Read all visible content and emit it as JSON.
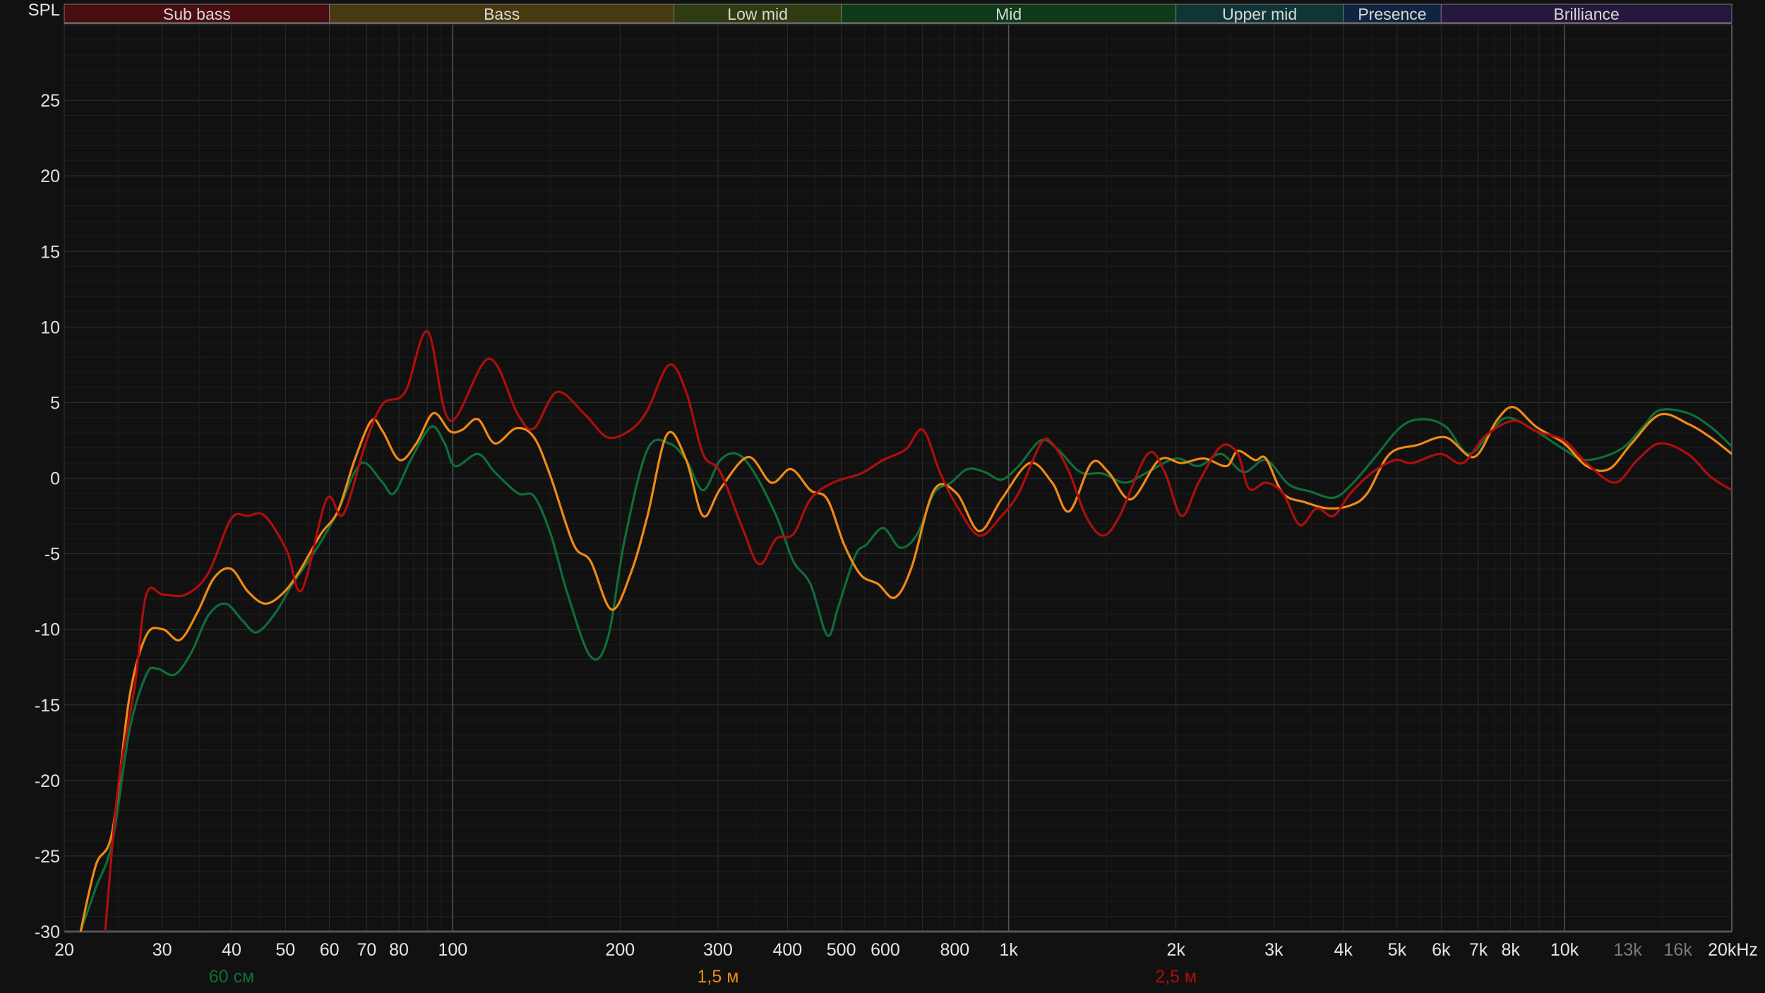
{
  "chart_data": {
    "type": "line",
    "ylabel": "SPL",
    "xunit": "kHz",
    "xscale": "log",
    "xlim": [
      20,
      20000
    ],
    "ylim": [
      -30,
      30
    ],
    "grid": true,
    "y_ticks": [
      -30,
      -25,
      -20,
      -15,
      -10,
      -5,
      0,
      5,
      10,
      15,
      20,
      25
    ],
    "x_ticks": [
      {
        "f": 20,
        "label": "20"
      },
      {
        "f": 30,
        "label": "30"
      },
      {
        "f": 40,
        "label": "40"
      },
      {
        "f": 50,
        "label": "50"
      },
      {
        "f": 60,
        "label": "60"
      },
      {
        "f": 70,
        "label": "70"
      },
      {
        "f": 80,
        "label": "80"
      },
      {
        "f": 100,
        "label": "100"
      },
      {
        "f": 200,
        "label": "200"
      },
      {
        "f": 300,
        "label": "300"
      },
      {
        "f": 400,
        "label": "400"
      },
      {
        "f": 500,
        "label": "500"
      },
      {
        "f": 600,
        "label": "600"
      },
      {
        "f": 800,
        "label": "800"
      },
      {
        "f": 1000,
        "label": "1k"
      },
      {
        "f": 2000,
        "label": "2k"
      },
      {
        "f": 3000,
        "label": "3k"
      },
      {
        "f": 4000,
        "label": "4k"
      },
      {
        "f": 5000,
        "label": "5k"
      },
      {
        "f": 6000,
        "label": "6k"
      },
      {
        "f": 7000,
        "label": "7k"
      },
      {
        "f": 8000,
        "label": "8k"
      },
      {
        "f": 10000,
        "label": "10k"
      },
      {
        "f": 13000,
        "label": "13k",
        "dim": true
      },
      {
        "f": 16000,
        "label": "16k",
        "dim": true
      },
      {
        "f": 20000,
        "label": "20kHz"
      }
    ],
    "bands": [
      {
        "label": "Sub bass",
        "from": 20,
        "to": 60,
        "color": "#4a0d10"
      },
      {
        "label": "Bass",
        "from": 60,
        "to": 250,
        "color": "#483a10"
      },
      {
        "label": "Low mid",
        "from": 250,
        "to": 500,
        "color": "#2f3b10"
      },
      {
        "label": "Mid",
        "from": 500,
        "to": 2000,
        "color": "#0f3a18"
      },
      {
        "label": "Upper mid",
        "from": 2000,
        "to": 4000,
        "color": "#0f3535"
      },
      {
        "label": "Presence",
        "from": 4000,
        "to": 6000,
        "color": "#0f2440"
      },
      {
        "label": "Brilliance",
        "from": 6000,
        "to": 20000,
        "color": "#25173d"
      }
    ],
    "series": [
      {
        "name": "60 см",
        "color": "#0e6e38",
        "label_at": 40,
        "x": [
          21.4,
          22.8,
          24.4,
          26.2,
          28.1,
          29.4,
          31.6,
          33.9,
          36.3,
          39.0,
          41.8,
          44.4,
          48.0,
          51.5,
          56.6,
          62.1,
          66.6,
          69.7,
          74.8,
          78.4,
          84.0,
          91.4,
          96.7,
          101,
          111,
          119,
          131,
          140,
          150,
          161,
          177,
          190,
          204,
          224,
          245,
          263,
          282,
          303,
          325,
          348,
          382,
          410,
          440,
          472,
          494,
          530,
          555,
          595,
          638,
          685,
          734,
          787,
          844,
          906,
          971,
          1042,
          1143,
          1226,
          1346,
          1477,
          1621,
          1779,
          2000,
          2196,
          2410,
          2645,
          2904,
          3188,
          3500,
          3840,
          4120,
          4521,
          5080,
          5575,
          6120,
          6720,
          7375,
          7910,
          8890,
          9986,
          10960,
          12610,
          13840,
          14840,
          16670,
          18310,
          20000
        ],
        "y": [
          -30,
          -27.1,
          -24.1,
          -16.7,
          -13.0,
          -12.6,
          -13.0,
          -11.5,
          -9.1,
          -8.3,
          -9.4,
          -10.2,
          -8.9,
          -7.0,
          -4.8,
          -2.2,
          0.4,
          1.0,
          -0.3,
          -1.0,
          1.2,
          3.4,
          2.3,
          0.8,
          1.6,
          0.4,
          -1.0,
          -1.2,
          -3.7,
          -7.7,
          -11.8,
          -10.6,
          -4.0,
          1.9,
          2.3,
          1.2,
          -0.8,
          1.2,
          1.6,
          0.4,
          -2.5,
          -5.5,
          -7.0,
          -10.4,
          -8.5,
          -5.1,
          -4.4,
          -3.3,
          -4.6,
          -3.7,
          -1.0,
          -0.3,
          0.6,
          0.4,
          -0.1,
          0.8,
          2.5,
          1.9,
          0.4,
          0.3,
          -0.3,
          0.4,
          1.3,
          0.8,
          1.6,
          0.4,
          1.2,
          -0.4,
          -0.9,
          -1.3,
          -0.5,
          1.2,
          3.4,
          3.9,
          3.4,
          1.6,
          3.1,
          4.0,
          3.1,
          1.9,
          1.2,
          1.9,
          3.4,
          4.5,
          4.3,
          3.4,
          2.1
        ]
      },
      {
        "name": "1,5 м",
        "color": "#f08a14",
        "label_at": 300,
        "x": [
          21.4,
          22.8,
          24.4,
          26.2,
          28.1,
          30.1,
          32.3,
          34.7,
          37.2,
          39.9,
          42.8,
          45.9,
          49.2,
          52.7,
          57.9,
          62.1,
          66.6,
          71.4,
          74.8,
          80.2,
          86.0,
          92.3,
          98.9,
          104,
          111,
          119,
          130,
          140,
          150,
          165,
          177,
          193,
          209,
          224,
          243,
          263,
          282,
          303,
          340,
          374,
          406,
          440,
          472,
          506,
          542,
          582,
          624,
          669,
          734,
          806,
          885,
          971,
          1091,
          1198,
          1285,
          1410,
          1512,
          1660,
          1865,
          2047,
          2247,
          2466,
          2584,
          2772,
          2904,
          3115,
          3419,
          3752,
          4120,
          4418,
          4848,
          5447,
          6120,
          6878,
          7549,
          8096,
          8890,
          9986,
          10960,
          12030,
          13210,
          14840,
          16670,
          18310,
          20000
        ],
        "y": [
          -30,
          -25.6,
          -23.4,
          -14.5,
          -10.4,
          -10.0,
          -10.7,
          -8.9,
          -6.6,
          -6.0,
          -7.5,
          -8.3,
          -7.7,
          -6.3,
          -3.7,
          -2.2,
          1.2,
          3.8,
          3.1,
          1.2,
          2.3,
          4.3,
          3.1,
          3.2,
          3.9,
          2.3,
          3.3,
          2.7,
          0.1,
          -4.4,
          -5.5,
          -8.7,
          -6.3,
          -2.5,
          2.9,
          1.2,
          -2.5,
          -0.7,
          1.4,
          -0.3,
          0.6,
          -0.8,
          -1.4,
          -4.4,
          -6.4,
          -7.0,
          -7.9,
          -5.9,
          -0.8,
          -1.0,
          -3.5,
          -1.4,
          1.0,
          -0.3,
          -2.2,
          1.0,
          0.4,
          -1.4,
          1.2,
          1.0,
          1.3,
          0.8,
          1.8,
          1.2,
          1.3,
          -1.0,
          -1.6,
          -2.0,
          -1.8,
          -1.0,
          1.6,
          2.2,
          2.7,
          1.4,
          3.8,
          4.7,
          3.4,
          2.3,
          0.8,
          0.6,
          2.3,
          4.2,
          3.6,
          2.7,
          1.6
        ]
      },
      {
        "name": "2,5 м",
        "color": "#b00d0d",
        "label_at": 2000,
        "x": [
          23.7,
          25.0,
          26.8,
          28.1,
          30.1,
          33.1,
          36.3,
          39.9,
          42.8,
          45.9,
          50.3,
          53.5,
          59.3,
          63.5,
          69.7,
          74.8,
          82.1,
          90.1,
          98.9,
          116,
          131,
          140,
          154,
          173,
          190,
          209,
          224,
          245,
          263,
          282,
          303,
          332,
          356,
          382,
          410,
          440,
          483,
          542,
          595,
          653,
          701,
          752,
          806,
          885,
          971,
          1042,
          1143,
          1198,
          1285,
          1377,
          1477,
          1584,
          1779,
          1909,
          2047,
          2196,
          2410,
          2584,
          2708,
          2904,
          3115,
          3341,
          3582,
          3840,
          4120,
          4521,
          4961,
          5321,
          5980,
          6565,
          7206,
          8096,
          8890,
          9986,
          10960,
          12320,
          13520,
          14840,
          16670,
          18310,
          20000
        ],
        "y": [
          -30,
          -20.4,
          -13.7,
          -7.7,
          -7.7,
          -7.7,
          -6.3,
          -2.7,
          -2.5,
          -2.5,
          -4.8,
          -7.4,
          -1.4,
          -2.4,
          2.3,
          4.9,
          5.7,
          9.7,
          3.8,
          7.9,
          4.2,
          3.3,
          5.7,
          4.2,
          2.7,
          3.2,
          4.5,
          7.5,
          5.7,
          1.6,
          0.4,
          -3.3,
          -5.7,
          -4.0,
          -3.7,
          -1.4,
          -0.3,
          0.3,
          1.2,
          1.9,
          3.2,
          0.4,
          -1.8,
          -3.8,
          -2.5,
          -1.0,
          2.3,
          2.3,
          0.4,
          -2.5,
          -3.8,
          -2.5,
          1.6,
          0.4,
          -2.5,
          -0.3,
          2.1,
          1.6,
          -0.7,
          -0.3,
          -1.0,
          -3.1,
          -2.0,
          -2.5,
          -1.0,
          0.4,
          1.2,
          1.0,
          1.6,
          1.0,
          2.8,
          3.8,
          3.1,
          2.5,
          1.0,
          -0.3,
          1.2,
          2.3,
          1.6,
          0.1,
          -0.8
        ]
      }
    ]
  }
}
